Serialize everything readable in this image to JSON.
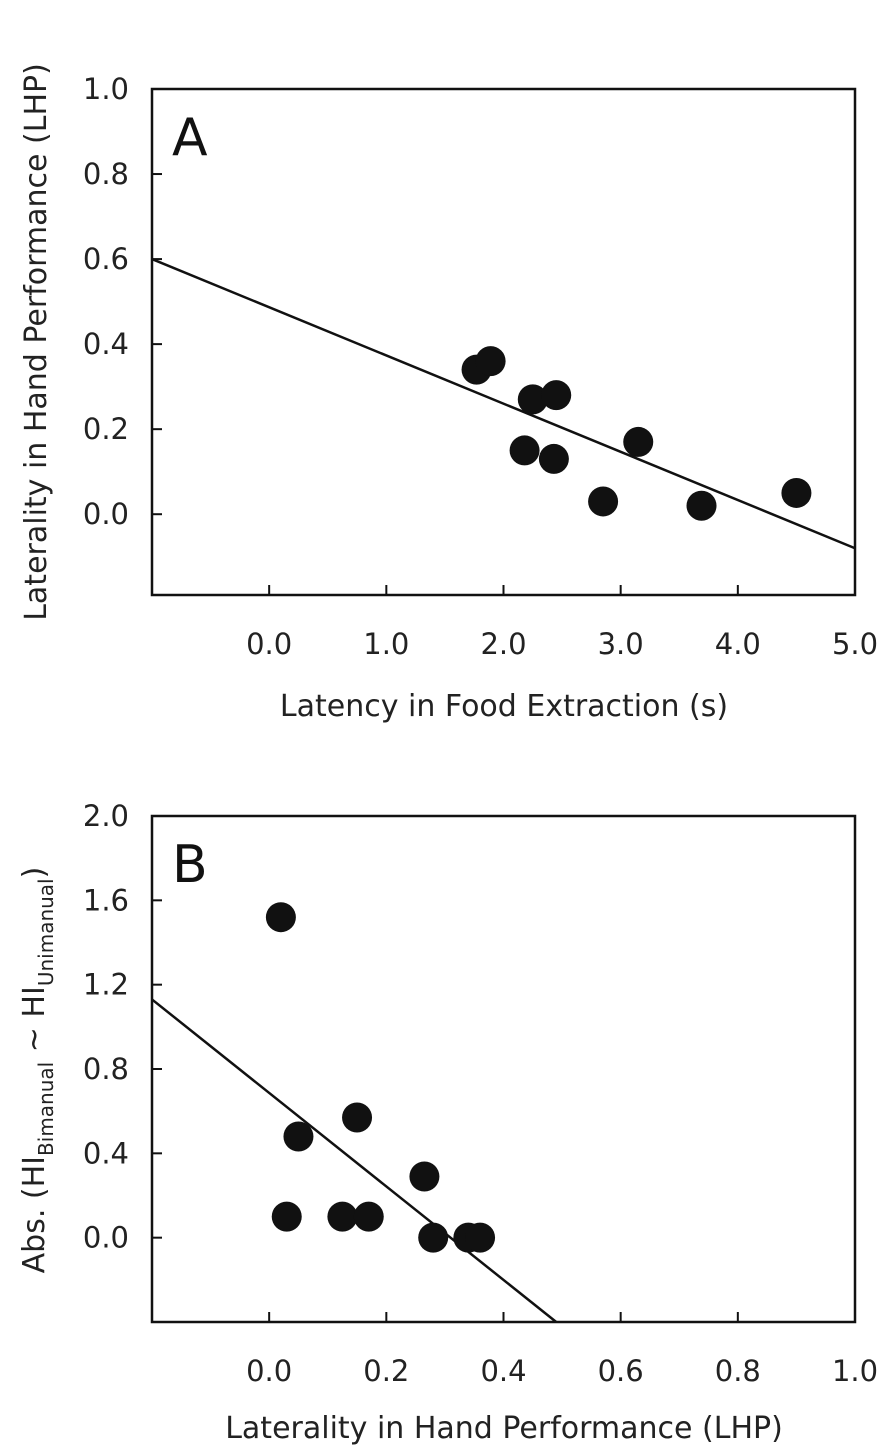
{
  "chart_data": [
    {
      "type": "scatter",
      "panel_label": "A",
      "xlabel": "Latency in Food Extraction (s)",
      "ylabel": "Laterality in Hand Performance (LHP)",
      "xlim": [
        -1.0,
        5.0
      ],
      "ylim": [
        -0.19,
        1.0
      ],
      "xticks": [
        "0.0",
        "1.0",
        "2.0",
        "3.0",
        "4.0",
        "5.0"
      ],
      "xtick_values": [
        0,
        1,
        2,
        3,
        4,
        5
      ],
      "yticks": [
        "0.0",
        "0.2",
        "0.4",
        "0.6",
        "0.8",
        "1.0"
      ],
      "ytick_values": [
        0,
        0.2,
        0.4,
        0.6,
        0.8,
        1.0
      ],
      "grid": false,
      "points": [
        {
          "x": 1.77,
          "y": 0.34
        },
        {
          "x": 1.89,
          "y": 0.36
        },
        {
          "x": 2.25,
          "y": 0.27
        },
        {
          "x": 2.45,
          "y": 0.28
        },
        {
          "x": 2.18,
          "y": 0.15
        },
        {
          "x": 2.43,
          "y": 0.13
        },
        {
          "x": 2.85,
          "y": 0.03
        },
        {
          "x": 3.15,
          "y": 0.17
        },
        {
          "x": 3.69,
          "y": 0.02
        },
        {
          "x": 4.5,
          "y": 0.05
        }
      ],
      "fit_line": {
        "x": [
          -1.0,
          5.0
        ],
        "y": [
          0.6,
          -0.08
        ]
      }
    },
    {
      "type": "scatter",
      "panel_label": "B",
      "xlabel": "Laterality in Hand Performance (LHP)",
      "ylabel": {
        "prefix": "Abs. (HI",
        "sub1": "Bimanual",
        "mid": " ~ HI",
        "sub2": "Unimanual",
        "suffix": ")"
      },
      "xlim": [
        -0.2,
        1.0
      ],
      "ylim": [
        -0.4,
        2.0
      ],
      "xticks": [
        "0.0",
        "0.2",
        "0.4",
        "0.6",
        "0.8",
        "1.0"
      ],
      "xtick_values": [
        0,
        0.2,
        0.4,
        0.6,
        0.8,
        1.0
      ],
      "yticks": [
        "0.0",
        "0.4",
        "0.8",
        "1.2",
        "1.6",
        "2.0"
      ],
      "ytick_values": [
        0,
        0.4,
        0.8,
        1.2,
        1.6,
        2.0
      ],
      "grid": false,
      "points": [
        {
          "x": 0.02,
          "y": 1.52
        },
        {
          "x": 0.05,
          "y": 0.48
        },
        {
          "x": 0.15,
          "y": 0.57
        },
        {
          "x": 0.03,
          "y": 0.1
        },
        {
          "x": 0.125,
          "y": 0.1
        },
        {
          "x": 0.17,
          "y": 0.1
        },
        {
          "x": 0.265,
          "y": 0.29
        },
        {
          "x": 0.28,
          "y": 0.0
        },
        {
          "x": 0.34,
          "y": 0.0
        },
        {
          "x": 0.36,
          "y": 0.0
        }
      ],
      "fit_line": {
        "x": [
          -0.2,
          0.49
        ],
        "y": [
          1.13,
          -0.4
        ]
      }
    }
  ]
}
